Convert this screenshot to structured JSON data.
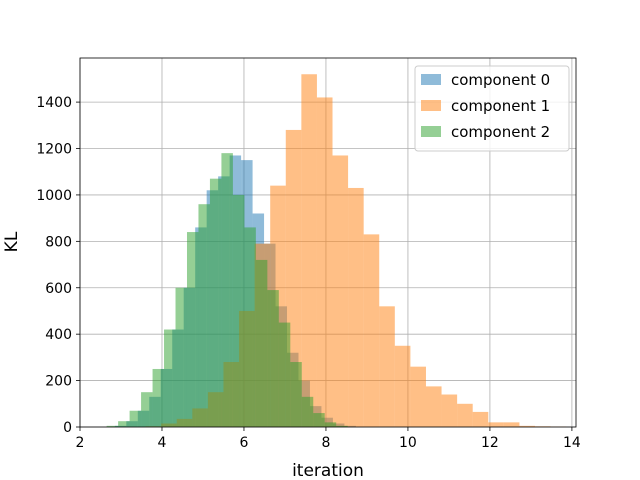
{
  "chart_data": {
    "type": "bar",
    "subtype": "overlapping-histogram",
    "title": "",
    "xlabel": "iteration",
    "ylabel": "KL",
    "xlim": [
      2,
      14.1
    ],
    "ylim": [
      0,
      1590
    ],
    "xticks": [
      "2",
      "4",
      "6",
      "8",
      "10",
      "12",
      "14"
    ],
    "xtick_values": [
      2,
      4,
      6,
      8,
      10,
      12,
      14
    ],
    "yticks": [
      "0",
      "200",
      "400",
      "600",
      "800",
      "1000",
      "1200",
      "1400"
    ],
    "ytick_values": [
      0,
      200,
      400,
      600,
      800,
      1000,
      1200,
      1400
    ],
    "grid": true,
    "legend_position": "top-right",
    "series": [
      {
        "name": "component 0",
        "color": "#1f77b4",
        "alpha": 0.5,
        "bin_edges": [
          2.85,
          3.13,
          3.41,
          3.69,
          3.97,
          4.25,
          4.53,
          4.81,
          5.09,
          5.37,
          5.65,
          5.93,
          6.21,
          6.49,
          6.77,
          7.05,
          7.33,
          7.61,
          7.89,
          8.17,
          8.45,
          8.73
        ],
        "values": [
          5,
          25,
          70,
          130,
          250,
          420,
          600,
          860,
          1020,
          1080,
          1170,
          1150,
          920,
          790,
          520,
          320,
          200,
          90,
          40,
          15,
          5
        ]
      },
      {
        "name": "component 1",
        "color": "#ff7f0e",
        "alpha": 0.5,
        "bin_edges": [
          3.6,
          3.98,
          4.36,
          4.74,
          5.12,
          5.5,
          5.88,
          6.26,
          6.64,
          7.02,
          7.4,
          7.78,
          8.16,
          8.54,
          8.92,
          9.3,
          9.68,
          10.06,
          10.44,
          10.82,
          11.2,
          11.58,
          11.96,
          12.34,
          12.72,
          13.1,
          13.48,
          13.86
        ],
        "values": [
          3,
          15,
          35,
          80,
          150,
          280,
          500,
          790,
          1040,
          1280,
          1520,
          1420,
          1170,
          1030,
          830,
          520,
          350,
          260,
          175,
          140,
          100,
          65,
          20,
          20,
          5,
          3,
          2
        ]
      },
      {
        "name": "component 2",
        "color": "#2ca02c",
        "alpha": 0.5,
        "bin_edges": [
          2.65,
          2.93,
          3.21,
          3.49,
          3.77,
          4.05,
          4.33,
          4.61,
          4.89,
          5.17,
          5.45,
          5.73,
          6.01,
          6.29,
          6.57,
          6.85,
          7.13,
          7.41,
          7.69,
          7.97,
          8.25,
          8.53
        ],
        "values": [
          5,
          25,
          70,
          150,
          250,
          420,
          600,
          840,
          960,
          1070,
          1180,
          1000,
          860,
          720,
          590,
          450,
          280,
          130,
          60,
          20,
          5
        ]
      }
    ]
  }
}
